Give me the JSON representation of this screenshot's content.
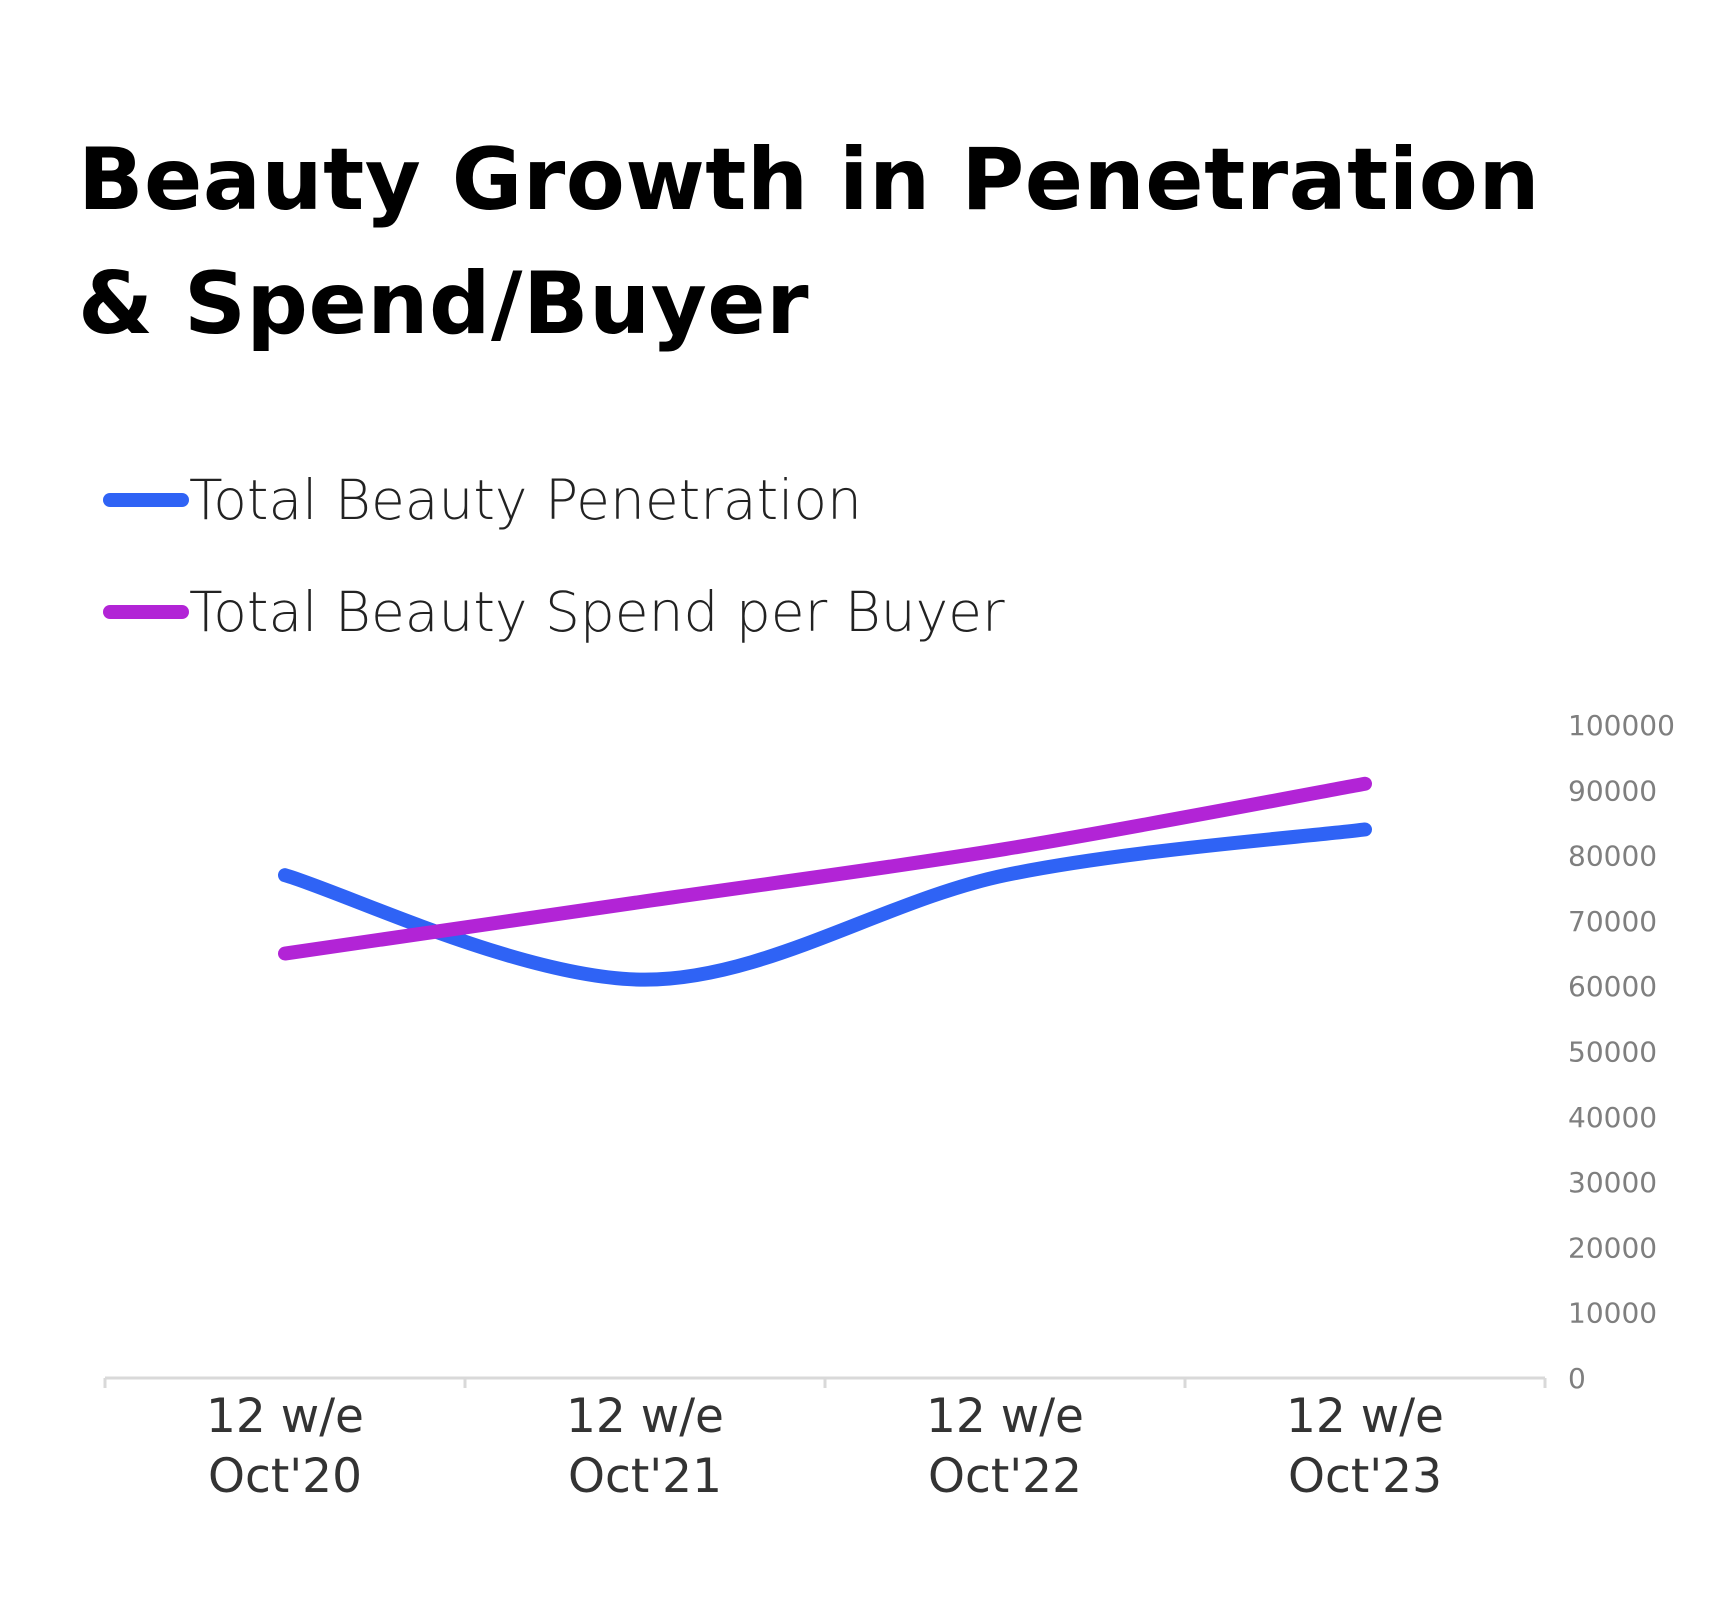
{
  "title": "Beauty Growth in Penetration & Spend/Buyer",
  "colors": {
    "penetration": "#2f63f5",
    "spend": "#b224d6",
    "axis": "#d9d9d9",
    "tick_text": "#7f7f7f",
    "category_text": "#333333"
  },
  "legend": {
    "placement": "top-left",
    "items": [
      {
        "label": "Total Beauty Penetration",
        "color_key": "penetration"
      },
      {
        "label": "Total Beauty Spend per Buyer",
        "color_key": "spend"
      }
    ]
  },
  "chart_data": {
    "type": "line",
    "title": "Beauty Growth in Penetration & Spend/Buyer",
    "categories": [
      [
        "12 w/e",
        "Oct'20"
      ],
      [
        "12 w/e",
        "Oct'21"
      ],
      [
        "12 w/e",
        "Oct'22"
      ],
      [
        "12 w/e",
        "Oct'23"
      ]
    ],
    "series": [
      {
        "name": "Total Beauty Penetration",
        "values": [
          77000,
          61000,
          77000,
          84000
        ],
        "smooth": true
      },
      {
        "name": "Total Beauty Spend per Buyer",
        "values": [
          65000,
          73000,
          81000,
          91000
        ],
        "smooth": true
      }
    ],
    "y_axis": {
      "position": "right",
      "ylim": [
        0,
        100000
      ],
      "tick_labels": [
        "0",
        "10000",
        "20000",
        "30000",
        "40000",
        "50000",
        "60000",
        "70000",
        "80000",
        "90000",
        "100000"
      ]
    },
    "xlabel": "",
    "ylabel": "",
    "grid": false
  }
}
